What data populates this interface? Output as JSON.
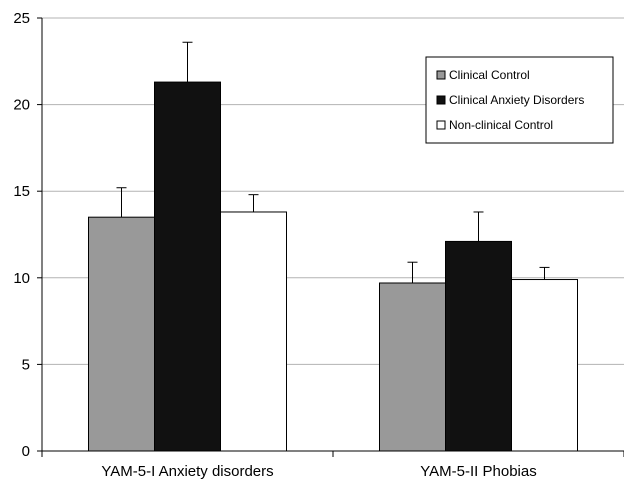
{
  "chart_data": {
    "type": "bar",
    "title": "",
    "xlabel": "",
    "ylabel": "",
    "categories": [
      "YAM-5-I Anxiety disorders",
      "YAM-5-II Phobias"
    ],
    "series": [
      {
        "name": "Clinical Control",
        "color": "#999999",
        "values": [
          13.5,
          9.7
        ],
        "errors": [
          1.7,
          1.2
        ]
      },
      {
        "name": "Clinical Anxiety Disorders",
        "color": "#111111",
        "values": [
          21.3,
          12.1
        ],
        "errors": [
          2.3,
          1.7
        ]
      },
      {
        "name": "Non-clinical Control",
        "color": "#ffffff",
        "values": [
          13.8,
          9.9
        ],
        "errors": [
          1.0,
          0.7
        ]
      }
    ],
    "ylim": [
      0,
      25
    ],
    "yticks": [
      0,
      5,
      10,
      15,
      20,
      25
    ],
    "grid": true,
    "legend_position": "top-right"
  }
}
